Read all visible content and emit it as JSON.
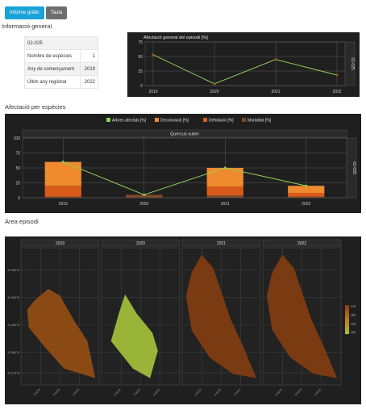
{
  "tabs": [
    {
      "label": "Informe gràfic",
      "active": true
    },
    {
      "label": "Taula",
      "active": false
    }
  ],
  "sections": {
    "info_general": "Informació general",
    "afectacio_especies": "Afectació per espècies",
    "area_episodi": "Àrea episodi"
  },
  "info_table": {
    "header": "02-025",
    "rows": [
      {
        "label": "Nombre de espècies",
        "value": "1"
      },
      {
        "label": "Any de començament",
        "value": "2019"
      },
      {
        "label": "Últim any registrat",
        "value": "2022"
      }
    ]
  },
  "colors": {
    "panel_bg": "#1f1f1f",
    "line_green": "#8fcf5a",
    "point_brown": "#9b5a2a",
    "decoloracio": "#ef8a2e",
    "defoliacio": "#d85a1a",
    "mortalitat": "#7a4a2a",
    "tab_active": "#1aa3d9",
    "tab_inactive": "#6e6e6e"
  },
  "chart_data": [
    {
      "type": "line",
      "title": "Afectació general del episodi [%]",
      "right_strip": "02-025",
      "x": [
        "2019",
        "2020",
        "2021",
        "2022"
      ],
      "series": [
        {
          "values": [
            53,
            3,
            45,
            18
          ]
        }
      ],
      "ylim": [
        0,
        75
      ],
      "yticks": [
        "0",
        "25",
        "50",
        "75"
      ]
    },
    {
      "type": "bar",
      "legend": [
        "Arbres afectats [%]",
        "Decoloració [%]",
        "Defoliació [%]",
        "Mortalitat [%]"
      ],
      "panel_title": "Quercus suber",
      "right_strip": "02-025",
      "categories": [
        "2019",
        "2020",
        "2021",
        "2022"
      ],
      "series": [
        {
          "name": "Mortalitat [%]",
          "values": [
            2,
            5,
            4,
            2
          ]
        },
        {
          "name": "Defoliació [%]",
          "values": [
            18,
            0,
            15,
            6
          ]
        },
        {
          "name": "Decoloració [%]",
          "values": [
            40,
            0,
            31,
            12
          ]
        }
      ],
      "line": {
        "name": "Arbres afectats [%]",
        "values": [
          60,
          5,
          50,
          20
        ]
      },
      "ylim": [
        0,
        100
      ],
      "yticks": [
        "0",
        "25",
        "50",
        "75",
        "100"
      ]
    },
    {
      "type": "heatmap",
      "panels": [
        "2019",
        "2020",
        "2021",
        "2022"
      ],
      "panel_colors": [
        "#8b4a14",
        "#9ab43a",
        "#7a3a12",
        "#7a3a12"
      ],
      "legend_labels": [
        "175",
        "150",
        "125",
        "100"
      ],
      "y_labels": [
        "41.095°N",
        "41.090°N",
        "41.085°N",
        "41.080°N",
        "41.075°N"
      ],
      "x_labels": [
        "3.02°E",
        "3.03°E",
        "3.04°E"
      ]
    }
  ]
}
